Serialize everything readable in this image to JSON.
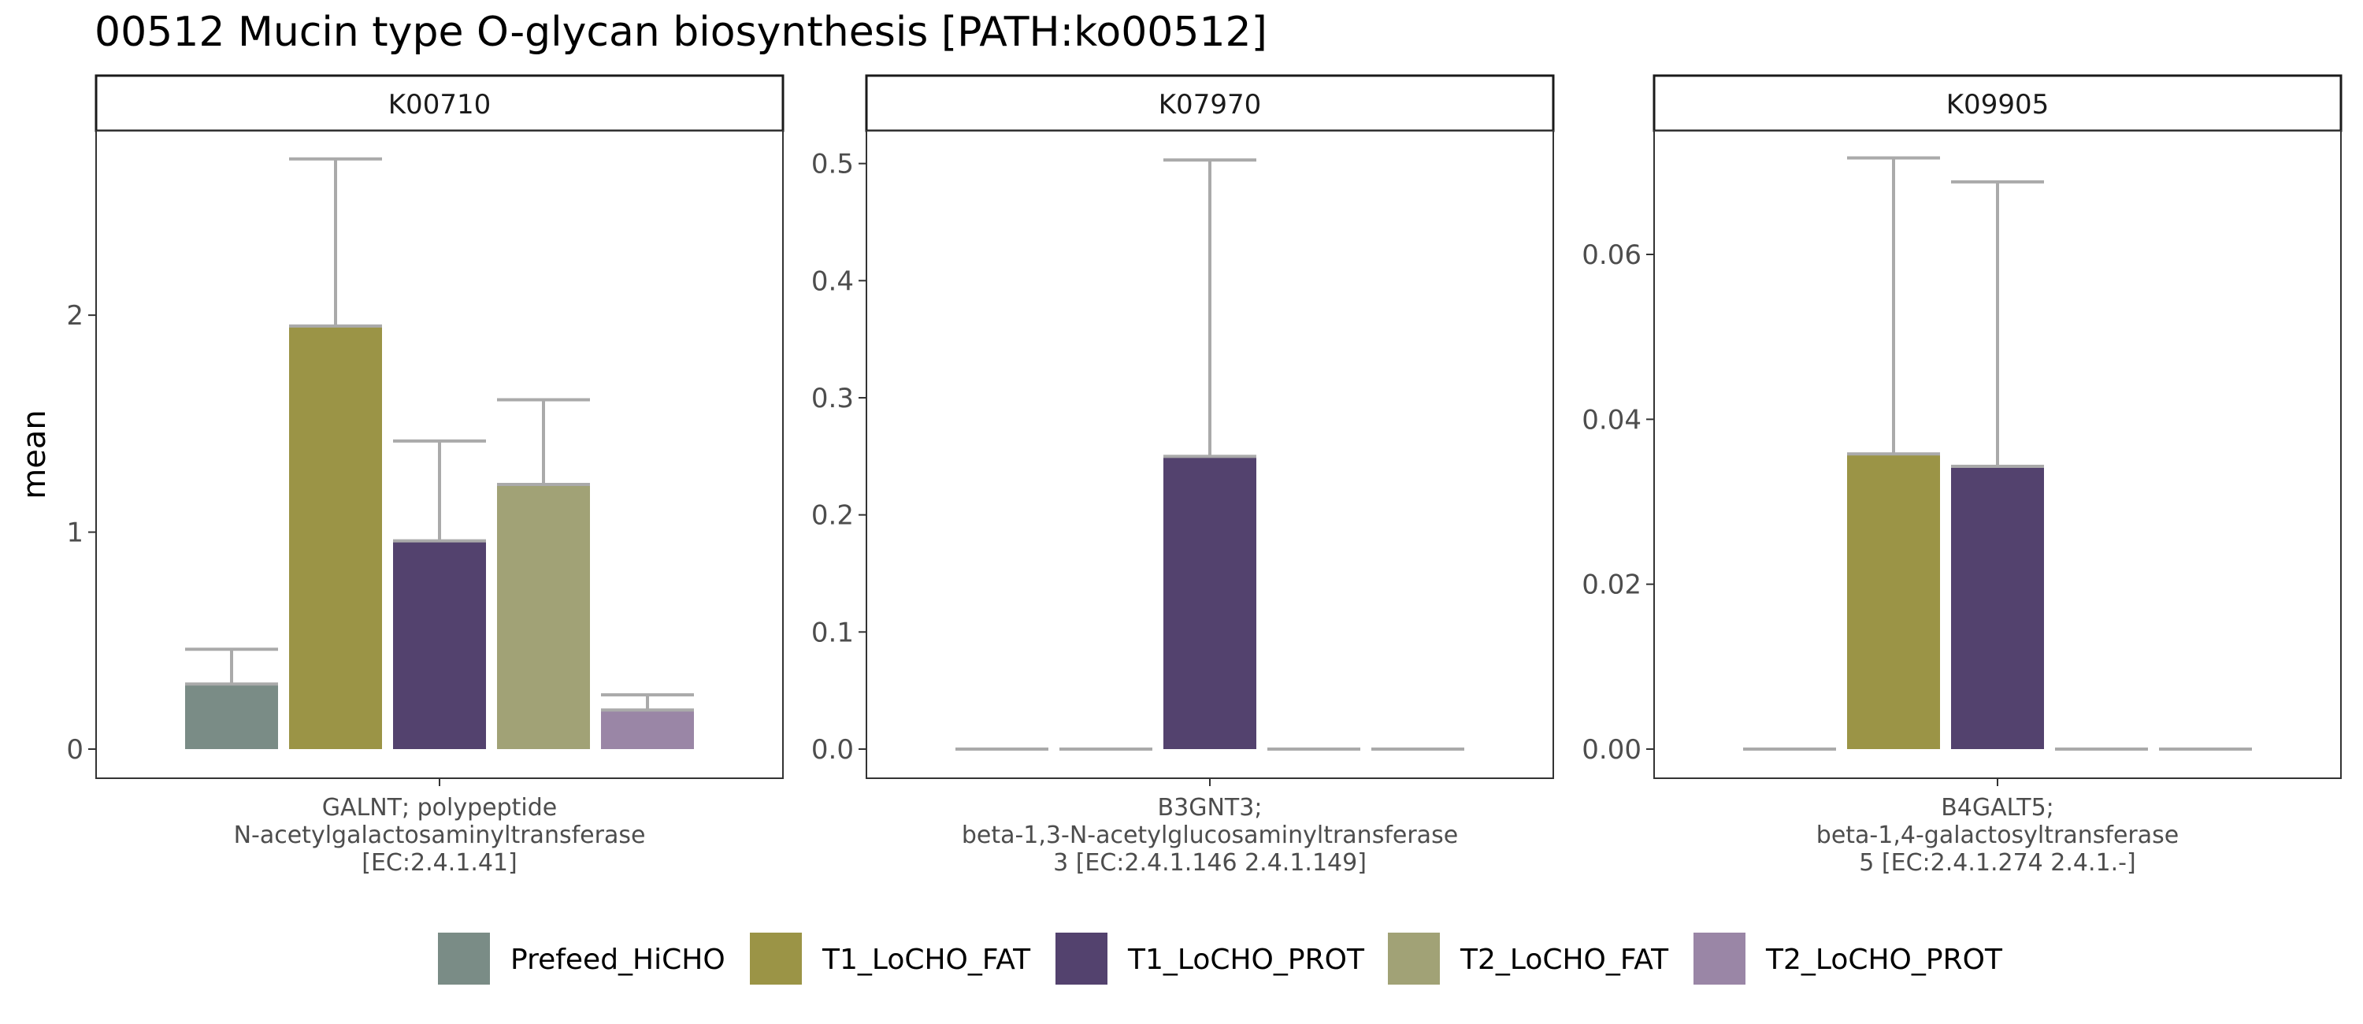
{
  "title": "00512 Mucin type O-glycan biosynthesis [PATH:ko00512]",
  "ylabel": "mean",
  "groups": [
    "Prefeed_HiCHO",
    "T1_LoCHO_FAT",
    "T1_LoCHO_PROT",
    "T2_LoCHO_FAT",
    "T2_LoCHO_PROT"
  ],
  "colors": {
    "Prefeed_HiCHO": "#7a8c86",
    "T1_LoCHO_FAT": "#9b9446",
    "T1_LoCHO_PROT": "#53426e",
    "T2_LoCHO_FAT": "#a1a276",
    "T2_LoCHO_PROT": "#9a86a6",
    "errorbar": "#aaaaaa"
  },
  "legend": {
    "position": "bottom"
  },
  "chart_data": [
    {
      "type": "bar",
      "facet": "K00710",
      "category_lines": [
        "GALNT; polypeptide",
        "N-acetylgalactosaminyltransferase",
        "[EC:2.4.1.41]"
      ],
      "ylim": [
        0,
        2.85
      ],
      "yticks": [
        0,
        1,
        2
      ],
      "tick_labels": [
        "0",
        "1",
        "2"
      ],
      "values": [
        0.3,
        1.95,
        0.96,
        1.22,
        0.18
      ],
      "errors": [
        0.46,
        2.72,
        1.42,
        1.61,
        0.25
      ]
    },
    {
      "type": "bar",
      "facet": "K07970",
      "category_lines": [
        "B3GNT3;",
        "beta-1,3-N-acetylglucosaminyltransferase",
        "3 [EC:2.4.1.146 2.4.1.149]"
      ],
      "ylim": [
        0,
        0.528
      ],
      "yticks": [
        0,
        0.1,
        0.2,
        0.3,
        0.4,
        0.5
      ],
      "tick_labels": [
        "0.0",
        "0.1",
        "0.2",
        "0.3",
        "0.4",
        "0.5"
      ],
      "values": [
        0,
        0,
        0.25,
        0,
        0
      ],
      "errors": [
        0,
        0,
        0.503,
        0,
        0
      ]
    },
    {
      "type": "bar",
      "facet": "K09905",
      "category_lines": [
        "B4GALT5;",
        "beta-1,4-galactosyltransferase",
        "5 [EC:2.4.1.274 2.4.1.-]"
      ],
      "ylim": [
        0,
        0.075
      ],
      "yticks": [
        0,
        0.02,
        0.04,
        0.06
      ],
      "tick_labels": [
        "0.00",
        "0.02",
        "0.04",
        "0.06"
      ],
      "values": [
        0,
        0.0358,
        0.0343,
        0,
        0
      ],
      "errors": [
        0,
        0.0717,
        0.0688,
        0,
        0
      ]
    }
  ]
}
